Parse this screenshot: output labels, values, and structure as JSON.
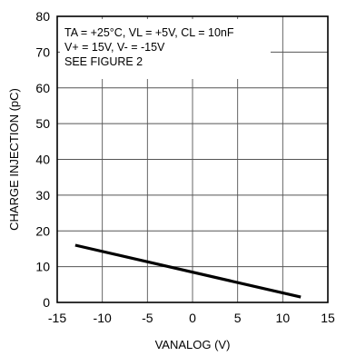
{
  "chart_data": {
    "type": "line",
    "title": "",
    "xlabel": "VANALOG (V)",
    "ylabel": "CHARGE INJECTION (pC)",
    "xlim": [
      -15,
      15
    ],
    "ylim": [
      0,
      80
    ],
    "x_ticks": [
      "-15",
      "-10",
      "-5",
      "0",
      "5",
      "10",
      "15"
    ],
    "y_ticks": [
      "0",
      "10",
      "20",
      "30",
      "40",
      "50",
      "60",
      "70",
      "80"
    ],
    "grid": true,
    "annotations": [
      "TA = +25°C, VL = +5V, CL = 10nF",
      "V+ = 15V, V- = -15V",
      "SEE FIGURE 2"
    ],
    "series": [
      {
        "x": [
          -13,
          12
        ],
        "y": [
          16,
          1.5
        ]
      }
    ]
  }
}
